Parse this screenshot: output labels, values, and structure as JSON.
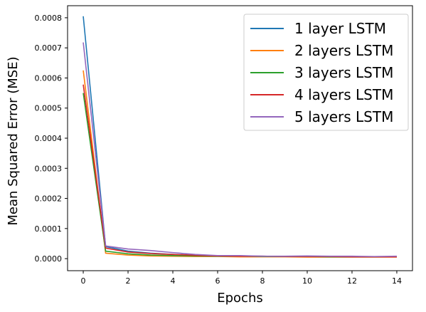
{
  "chart_data": {
    "type": "line",
    "xlabel": "Epochs",
    "ylabel": "Mean Squared Error (MSE)",
    "xlim": [
      -0.7,
      14.7
    ],
    "ylim": [
      -4e-05,
      0.00084
    ],
    "x_ticks": [
      0,
      2,
      4,
      6,
      8,
      10,
      12,
      14
    ],
    "y_ticks": [
      0.0,
      0.0001,
      0.0002,
      0.0003,
      0.0004,
      0.0005,
      0.0006,
      0.0007,
      0.0008
    ],
    "x_tick_labels": [
      "0",
      "2",
      "4",
      "6",
      "8",
      "10",
      "12",
      "14"
    ],
    "y_tick_labels": [
      "0.0000",
      "0.0001",
      "0.0002",
      "0.0003",
      "0.0004",
      "0.0005",
      "0.0006",
      "0.0007",
      "0.0008"
    ],
    "grid": false,
    "legend_position": "top-right",
    "x": [
      0,
      1,
      2,
      3,
      4,
      5,
      6,
      7,
      8,
      9,
      10,
      11,
      12,
      13,
      14
    ],
    "series": [
      {
        "name": "1 layer LSTM",
        "color": "#1f77b4",
        "values": [
          0.000805,
          4e-05,
          2.5e-05,
          1.8e-05,
          1.4e-05,
          1.1e-05,
          9e-06,
          8e-06,
          8e-06,
          7e-06,
          7e-06,
          6e-06,
          6e-06,
          6e-06,
          6e-06
        ]
      },
      {
        "name": "2 layers LSTM",
        "color": "#ff7f0e",
        "values": [
          0.000625,
          1.8e-05,
          1.2e-05,
          9e-06,
          8e-06,
          7e-06,
          7e-06,
          6e-06,
          6e-06,
          6e-06,
          5e-06,
          5e-06,
          5e-06,
          5e-06,
          5e-06
        ]
      },
      {
        "name": "3 layers LSTM",
        "color": "#2ca02c",
        "values": [
          0.00055,
          2.5e-05,
          1.6e-05,
          1.2e-05,
          1e-05,
          9e-06,
          8e-06,
          8e-06,
          7e-06,
          7e-06,
          7e-06,
          6e-06,
          6e-06,
          6e-06,
          7e-06
        ]
      },
      {
        "name": "4 layers LSTM",
        "color": "#d62728",
        "values": [
          0.000578,
          3.5e-05,
          2.2e-05,
          1.7e-05,
          1.4e-05,
          1.1e-05,
          9e-06,
          8e-06,
          8e-06,
          7e-06,
          7e-06,
          7e-06,
          6e-06,
          6e-06,
          6e-06
        ]
      },
      {
        "name": "5 layers LSTM",
        "color": "#9467bd",
        "values": [
          0.000718,
          4.2e-05,
          3.2e-05,
          2.7e-05,
          2e-05,
          1.4e-05,
          1e-05,
          1e-05,
          8e-06,
          8e-06,
          9e-06,
          8e-06,
          8e-06,
          7e-06,
          8e-06
        ]
      }
    ]
  }
}
